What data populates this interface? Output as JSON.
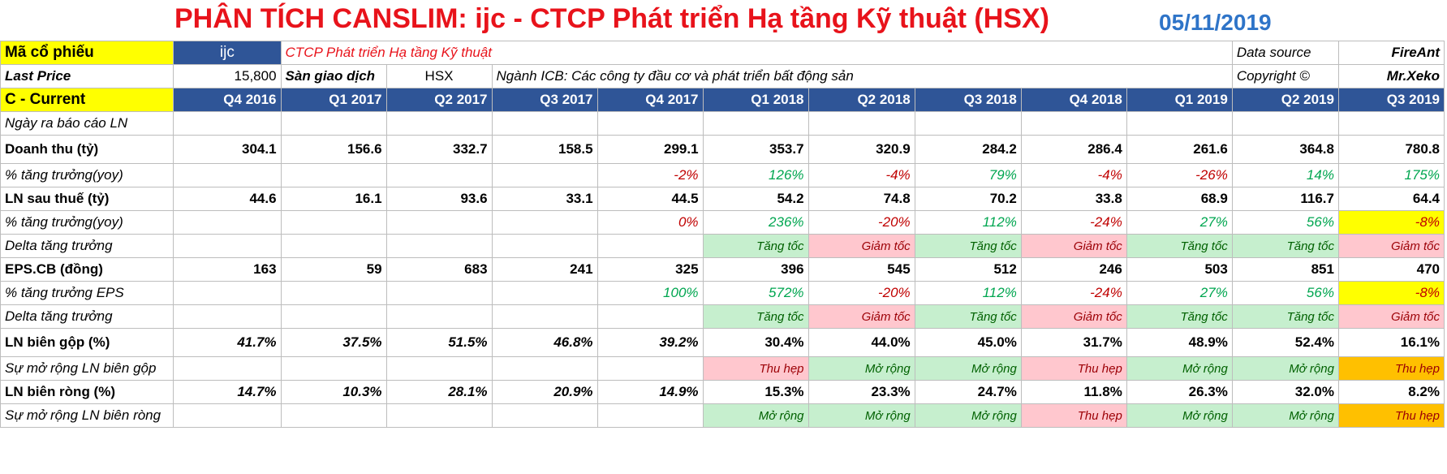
{
  "title": "PHÂN TÍCH CANSLIM: ijc - CTCP Phát triển Hạ tầng Kỹ thuật (HSX)",
  "date": "05/11/2019",
  "info": {
    "ticker_label": "Mã cổ phiếu",
    "ticker": "ijc",
    "company": "CTCP Phát triển Hạ tầng Kỹ thuật",
    "data_source_label": "Data source",
    "data_source": "FireAnt",
    "last_price_label": "Last Price",
    "last_price": "15,800",
    "exchange_label": "Sàn giao dịch",
    "exchange": "HSX",
    "industry": "Ngành ICB: Các công ty đầu cơ và phát triển bất động sản",
    "copyright_label": "Copyright ©",
    "copyright": "Mr.Xeko"
  },
  "header": {
    "label": "C - Current",
    "quarters": [
      "Q4 2016",
      "Q1 2017",
      "Q2 2017",
      "Q3 2017",
      "Q4 2017",
      "Q1 2018",
      "Q2 2018",
      "Q3 2018",
      "Q4 2018",
      "Q1 2019",
      "Q2 2019",
      "Q3 2019"
    ]
  },
  "rows": {
    "report_date": {
      "label": "Ngày ra báo cáo LN"
    },
    "revenue": {
      "label": "Doanh thu (tỷ)",
      "values": [
        "304.1",
        "156.6",
        "332.7",
        "158.5",
        "299.1",
        "353.7",
        "320.9",
        "284.2",
        "286.4",
        "261.6",
        "364.8",
        "780.8"
      ]
    },
    "revenue_growth": {
      "label": "% tăng trưởng(yoy)",
      "values": [
        "",
        "",
        "",
        "",
        "-2%",
        "126%",
        "-4%",
        "79%",
        "-4%",
        "-26%",
        "14%",
        "175%"
      ]
    },
    "profit": {
      "label": "LN sau thuế (tỷ)",
      "values": [
        "44.6",
        "16.1",
        "93.6",
        "33.1",
        "44.5",
        "54.2",
        "74.8",
        "70.2",
        "33.8",
        "68.9",
        "116.7",
        "64.4"
      ]
    },
    "profit_growth": {
      "label": "% tăng trưởng(yoy)",
      "values": [
        "",
        "",
        "",
        "",
        "0%",
        "236%",
        "-20%",
        "112%",
        "-24%",
        "27%",
        "56%",
        "-8%"
      ]
    },
    "profit_delta": {
      "label": "Delta tăng trưởng",
      "values": [
        "",
        "",
        "",
        "",
        "",
        "Tăng tốc",
        "Giảm tốc",
        "Tăng tốc",
        "Giảm tốc",
        "Tăng tốc",
        "Tăng tốc",
        "Giảm tốc"
      ]
    },
    "eps": {
      "label": "EPS.CB (đồng)",
      "values": [
        "163",
        "59",
        "683",
        "241",
        "325",
        "396",
        "545",
        "512",
        "246",
        "503",
        "851",
        "470"
      ]
    },
    "eps_growth": {
      "label": "% tăng trưởng EPS",
      "values": [
        "",
        "",
        "",
        "",
        "100%",
        "572%",
        "-20%",
        "112%",
        "-24%",
        "27%",
        "56%",
        "-8%"
      ]
    },
    "eps_delta": {
      "label": "Delta tăng trưởng",
      "values": [
        "",
        "",
        "",
        "",
        "",
        "Tăng tốc",
        "Giảm tốc",
        "Tăng tốc",
        "Giảm tốc",
        "Tăng tốc",
        "Tăng tốc",
        "Giảm tốc"
      ]
    },
    "gross_margin": {
      "label": "LN biên gộp (%)",
      "values": [
        "41.7%",
        "37.5%",
        "51.5%",
        "46.8%",
        "39.2%",
        "30.4%",
        "44.0%",
        "45.0%",
        "31.7%",
        "48.9%",
        "52.4%",
        "16.1%"
      ]
    },
    "gross_margin_exp": {
      "label": "Sự mở rộng LN biên gộp",
      "values": [
        "",
        "",
        "",
        "",
        "",
        "Thu hẹp",
        "Mở rộng",
        "Mở rộng",
        "Thu hẹp",
        "Mở rộng",
        "Mở rộng",
        "Thu hẹp"
      ]
    },
    "net_margin": {
      "label": "LN biên ròng (%)",
      "values": [
        "14.7%",
        "10.3%",
        "28.1%",
        "20.9%",
        "14.9%",
        "15.3%",
        "23.3%",
        "24.7%",
        "11.8%",
        "26.3%",
        "32.0%",
        "8.2%"
      ]
    },
    "net_margin_exp": {
      "label": "Sự mở rộng LN biên ròng",
      "values": [
        "",
        "",
        "",
        "",
        "",
        "Mở rộng",
        "Mở rộng",
        "Mở rộng",
        "Thu hẹp",
        "Mở rộng",
        "Mở rộng",
        "Thu hẹp"
      ]
    }
  },
  "colors": {
    "title": "#e8131b",
    "date": "#2e74c8",
    "header_bg": "#2f5597",
    "label_bg": "#ffff00",
    "up_bg": "#c6efce",
    "down_bg": "#ffc7ce"
  }
}
